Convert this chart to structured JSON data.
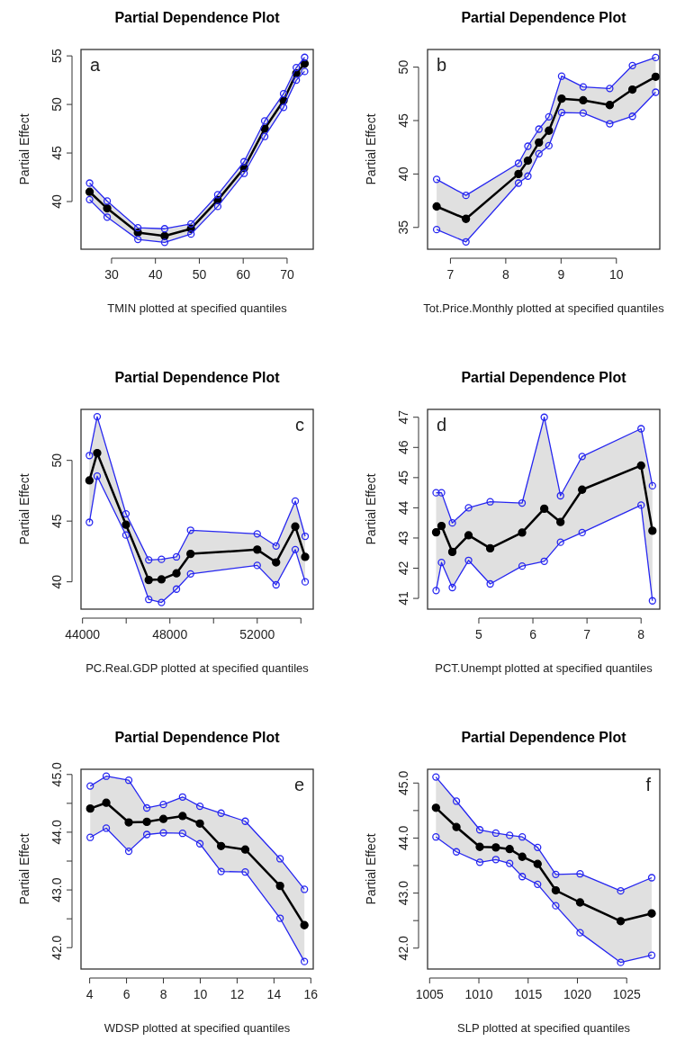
{
  "chart_data": [
    {
      "type": "line",
      "title": "Partial Dependence Plot",
      "xlabel": "TMIN plotted at specified quantiles",
      "ylabel": "Partial Effect",
      "annotations": [
        "a"
      ],
      "marker": "circle",
      "xlim": [
        23.04,
        75.96
      ],
      "ylim": [
        35.09,
        55.66
      ],
      "xticks": [
        30,
        40,
        50,
        60,
        70
      ],
      "yticks": [
        40,
        45,
        50,
        55
      ],
      "x": [
        25,
        29,
        36,
        42.1,
        48.1,
        54.2,
        60.2,
        64.9,
        69.2,
        72.1,
        74
      ],
      "series": [
        {
          "color": "#000000",
          "values": [
            41.0,
            39.3,
            36.8,
            36.45,
            37.2,
            40.15,
            43.45,
            47.5,
            50.4,
            53.2,
            54.2
          ],
          "lower": [
            40.2,
            38.4,
            36.1,
            35.8,
            36.65,
            39.5,
            42.9,
            46.7,
            49.7,
            52.5,
            53.4
          ],
          "upper": [
            41.9,
            40.05,
            37.3,
            37.2,
            37.7,
            40.7,
            44.1,
            48.3,
            51.1,
            53.8,
            54.85
          ]
        },
        {
          "color": "#2626f0",
          "values": [
            41.9,
            40.05,
            37.3,
            37.2,
            37.7,
            40.7,
            44.1,
            48.3,
            51.1,
            53.8,
            54.85
          ]
        },
        {
          "color": "#2626f0",
          "values": [
            40.2,
            38.4,
            36.1,
            35.8,
            36.65,
            39.5,
            42.9,
            46.7,
            49.7,
            52.5,
            53.4
          ]
        }
      ]
    },
    {
      "type": "line",
      "title": "Partial Dependence Plot",
      "xlabel": "Tot.Price.Monthly plotted at specified quantiles",
      "ylabel": "Partial Effect",
      "annotations": [
        "b"
      ],
      "marker": "circle",
      "xlim": [
        6.586,
        10.785
      ],
      "ylim": [
        32.96,
        51.65
      ],
      "xticks": [
        7,
        8,
        9,
        10
      ],
      "yticks": [
        35,
        40,
        45,
        50
      ],
      "x": [
        6.75,
        7.28,
        8.23,
        8.4,
        8.6,
        8.78,
        9.01,
        9.4,
        9.88,
        10.29,
        10.71
      ],
      "series": [
        {
          "color": "#000000",
          "values": [
            36.96,
            35.8,
            40.0,
            41.25,
            42.95,
            44.05,
            47.05,
            46.9,
            46.45,
            47.9,
            49.1
          ],
          "lower": [
            34.8,
            33.65,
            39.15,
            39.8,
            41.9,
            42.65,
            45.75,
            45.7,
            44.7,
            45.4,
            47.65
          ],
          "upper": [
            39.5,
            38.0,
            41.0,
            42.6,
            44.2,
            45.35,
            49.15,
            48.15,
            48.0,
            50.15,
            50.9
          ]
        },
        {
          "color": "#2626f0",
          "values": [
            39.5,
            38.0,
            41.0,
            42.6,
            44.2,
            45.35,
            49.15,
            48.15,
            48.0,
            50.15,
            50.9
          ]
        },
        {
          "color": "#2626f0",
          "values": [
            34.8,
            33.65,
            39.15,
            39.8,
            41.9,
            42.65,
            45.75,
            45.7,
            44.7,
            45.4,
            47.65
          ]
        }
      ]
    },
    {
      "type": "line",
      "title": "Partial Dependence Plot",
      "xlabel": "PC.Real.GDP plotted at specified quantiles",
      "ylabel": "Partial Effect",
      "annotations": [
        "c"
      ],
      "marker": "circle",
      "xlim": [
        43931,
        54565
      ],
      "ylim": [
        37.75,
        54.2
      ],
      "xticks": [
        44000,
        {
          "value": 46000,
          "label": null
        },
        48000,
        {
          "value": 50000,
          "label": null
        },
        52000,
        {
          "value": 54000,
          "label": null
        }
      ],
      "yticks": [
        40,
        45,
        50
      ],
      "x": [
        44316,
        44672,
        45990,
        47032,
        47616,
        48302,
        48947,
        52000,
        52864,
        53742,
        54195
      ],
      "series": [
        {
          "color": "#000000",
          "values": [
            48.35,
            50.6,
            44.7,
            40.15,
            40.2,
            40.7,
            42.3,
            42.65,
            41.6,
            44.55,
            42.05
          ],
          "lower": [
            44.9,
            48.7,
            43.85,
            38.55,
            38.3,
            39.4,
            40.65,
            41.35,
            39.75,
            42.65,
            40.0
          ],
          "upper": [
            50.4,
            53.6,
            45.6,
            41.8,
            41.85,
            42.05,
            44.25,
            43.95,
            42.95,
            46.65,
            43.75
          ]
        },
        {
          "color": "#2626f0",
          "values": [
            50.4,
            53.6,
            45.6,
            41.8,
            41.85,
            42.05,
            44.25,
            43.95,
            42.95,
            46.65,
            43.75
          ]
        },
        {
          "color": "#2626f0",
          "values": [
            44.9,
            48.7,
            43.85,
            38.55,
            38.3,
            39.4,
            40.65,
            41.35,
            39.75,
            42.65,
            40.0
          ]
        }
      ]
    },
    {
      "type": "line",
      "title": "Partial Dependence Plot",
      "xlabel": "PCT.Unempt plotted at specified quantiles",
      "ylabel": "Partial Effect",
      "annotations": [
        "d"
      ],
      "marker": "circle",
      "xlim": [
        4.052,
        8.346
      ],
      "ylim": [
        40.645,
        47.26
      ],
      "xticks": [
        5,
        6,
        7,
        8
      ],
      "yticks": [
        41,
        42,
        43,
        44,
        45,
        46,
        47
      ],
      "x": [
        4.21,
        4.31,
        4.51,
        4.81,
        5.21,
        5.8,
        6.21,
        6.51,
        6.91,
        8.0,
        8.21
      ],
      "series": [
        {
          "color": "#000000",
          "values": [
            43.19,
            43.4,
            42.54,
            43.09,
            42.66,
            43.18,
            43.97,
            43.53,
            44.6,
            45.4,
            43.24
          ],
          "lower": [
            41.26,
            42.19,
            41.36,
            42.26,
            41.48,
            42.07,
            42.23,
            42.86,
            43.18,
            44.09,
            40.92
          ],
          "upper": [
            44.5,
            44.5,
            43.5,
            44.0,
            44.2,
            44.16,
            47.0,
            44.4,
            45.7,
            46.62,
            44.73
          ]
        },
        {
          "color": "#2626f0",
          "values": [
            44.5,
            44.5,
            43.5,
            44.0,
            44.2,
            44.16,
            47.0,
            44.4,
            45.7,
            46.62,
            44.73
          ]
        },
        {
          "color": "#2626f0",
          "values": [
            41.26,
            42.19,
            41.36,
            42.26,
            41.48,
            42.07,
            42.23,
            42.86,
            43.18,
            44.09,
            40.92
          ]
        }
      ]
    },
    {
      "type": "line",
      "title": "Partial Dependence Plot",
      "xlabel": "WDSP plotted at specified quantiles",
      "ylabel": "Partial Effect",
      "annotations": [
        "e"
      ],
      "marker": "circle",
      "xlim": [
        3.53,
        16.13
      ],
      "ylim": [
        41.63,
        45.09
      ],
      "xticks": [
        4,
        6,
        8,
        10,
        12,
        14,
        16
      ],
      "yticks": [
        {
          "value": 42,
          "label": "42.0"
        },
        {
          "value": 42.5,
          "label": null
        },
        {
          "value": 43,
          "label": "43.0"
        },
        {
          "value": 43.5,
          "label": null
        },
        {
          "value": 44,
          "label": "44.0"
        },
        {
          "value": 44.5,
          "label": null
        },
        {
          "value": 45,
          "label": "45.0"
        }
      ],
      "x": [
        4.03,
        4.9,
        6.12,
        7.1,
        8.0,
        9.04,
        9.98,
        11.13,
        12.44,
        14.33,
        15.65
      ],
      "series": [
        {
          "color": "#000000",
          "values": [
            44.41,
            44.51,
            44.17,
            44.18,
            44.23,
            44.28,
            44.15,
            43.76,
            43.7,
            43.07,
            42.39
          ],
          "lower": [
            43.91,
            44.07,
            43.67,
            43.96,
            43.99,
            43.98,
            43.8,
            43.32,
            43.31,
            42.51,
            41.76
          ],
          "upper": [
            44.8,
            44.97,
            44.9,
            44.42,
            44.48,
            44.61,
            44.45,
            44.33,
            44.19,
            43.54,
            43.01
          ]
        },
        {
          "color": "#2626f0",
          "values": [
            44.8,
            44.97,
            44.9,
            44.42,
            44.48,
            44.61,
            44.45,
            44.33,
            44.19,
            43.54,
            43.01
          ]
        },
        {
          "color": "#2626f0",
          "values": [
            43.91,
            44.07,
            43.67,
            43.96,
            43.99,
            43.98,
            43.8,
            43.32,
            43.31,
            42.51,
            41.76
          ]
        }
      ]
    },
    {
      "type": "line",
      "title": "Partial Dependence Plot",
      "xlabel": "SLP plotted at specified quantiles",
      "ylabel": "Partial Effect",
      "annotations": [
        "f"
      ],
      "marker": "circle",
      "xlim": [
        1004.79,
        1028.36
      ],
      "ylim": [
        41.62,
        45.25
      ],
      "xticks": [
        1005,
        1010,
        1015,
        1020,
        1025
      ],
      "yticks": [
        {
          "value": 42,
          "label": "42.0"
        },
        {
          "value": 42.5,
          "label": null
        },
        {
          "value": 43,
          "label": "43.0"
        },
        {
          "value": 43.5,
          "label": null
        },
        {
          "value": 44,
          "label": "44.0"
        },
        {
          "value": 44.5,
          "label": null
        },
        {
          "value": 45,
          "label": "45.0"
        }
      ],
      "x": [
        1005.64,
        1007.72,
        1010.09,
        1011.72,
        1013.12,
        1014.4,
        1015.96,
        1017.8,
        1020.27,
        1024.39,
        1027.54
      ],
      "series": [
        {
          "color": "#000000",
          "values": [
            44.55,
            44.2,
            43.84,
            43.83,
            43.8,
            43.66,
            43.53,
            43.05,
            42.83,
            42.49,
            42.63
          ],
          "lower": [
            44.02,
            43.75,
            43.56,
            43.61,
            43.54,
            43.3,
            43.16,
            42.77,
            42.28,
            41.74,
            41.87
          ],
          "upper": [
            45.11,
            44.67,
            44.15,
            44.09,
            44.05,
            44.02,
            43.83,
            43.34,
            43.35,
            43.04,
            43.28
          ]
        },
        {
          "color": "#2626f0",
          "values": [
            45.11,
            44.67,
            44.15,
            44.09,
            44.05,
            44.02,
            43.83,
            43.34,
            43.35,
            43.04,
            43.28
          ]
        },
        {
          "color": "#2626f0",
          "values": [
            44.02,
            43.75,
            43.56,
            43.61,
            43.54,
            43.3,
            43.16,
            42.77,
            42.28,
            41.74,
            41.87
          ]
        }
      ]
    }
  ]
}
